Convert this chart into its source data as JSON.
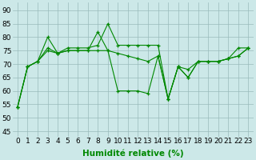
{
  "x": [
    0,
    1,
    2,
    3,
    4,
    5,
    6,
    7,
    8,
    9,
    10,
    11,
    12,
    13,
    14,
    15,
    16,
    17,
    18,
    19,
    20,
    21,
    22,
    23
  ],
  "line1": [
    54,
    69,
    71,
    80,
    74,
    76,
    76,
    76,
    77,
    85,
    77,
    77,
    77,
    77,
    77,
    57,
    69,
    68,
    71,
    71,
    71,
    72,
    76,
    76
  ],
  "line2": [
    54,
    69,
    71,
    76,
    74,
    75,
    75,
    75,
    82,
    75,
    74,
    73,
    72,
    71,
    73,
    57,
    69,
    65,
    71,
    71,
    71,
    72,
    73,
    76
  ],
  "line3": [
    54,
    69,
    71,
    75,
    74,
    75,
    75,
    75,
    75,
    75,
    60,
    60,
    60,
    59,
    73,
    57,
    69,
    65,
    71,
    71,
    71,
    72,
    73,
    76
  ],
  "line_color": "#008800",
  "bg_color": "#cce8e8",
  "grid_color": "#99bbbb",
  "xlabel": "Humidité relative (%)",
  "yticks": [
    45,
    50,
    55,
    60,
    65,
    70,
    75,
    80,
    85,
    90
  ],
  "ylim": [
    43,
    93
  ],
  "xlim": [
    -0.5,
    23.5
  ],
  "xlabel_fontsize": 7.5,
  "tick_fontsize": 6.5
}
